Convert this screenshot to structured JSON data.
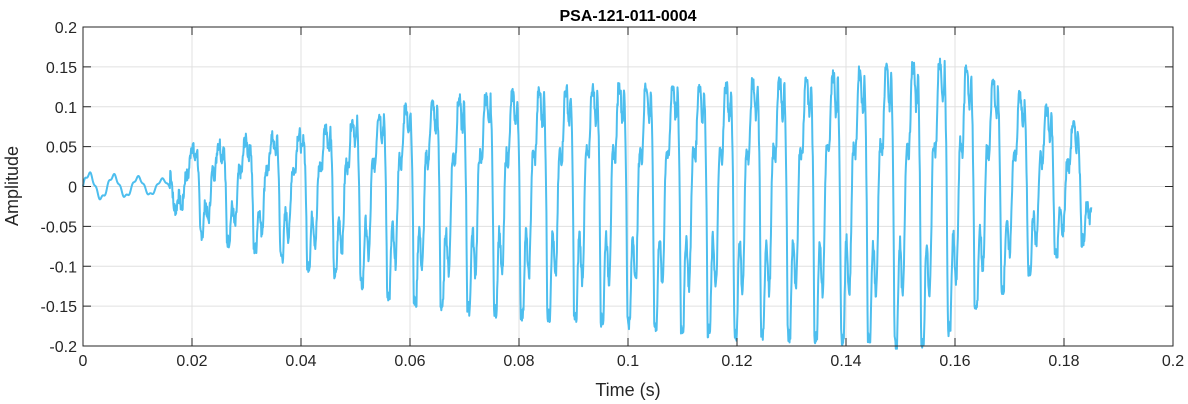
{
  "chart_data": {
    "type": "line",
    "title": "PSA-121-011-0004",
    "xlabel": "Time (s)",
    "ylabel": "Amplitude",
    "xlim": [
      0,
      0.2
    ],
    "ylim": [
      -0.2,
      0.2
    ],
    "grid": true,
    "x_ticks": [
      0,
      0.02,
      0.04,
      0.06,
      0.08,
      0.1,
      0.12,
      0.14,
      0.16,
      0.18,
      0.2
    ],
    "x_tick_labels": [
      "0",
      "0.02",
      "0.04",
      "0.06",
      "0.08",
      "0.1",
      "0.12",
      "0.14",
      "0.16",
      "0.18",
      "0.2"
    ],
    "y_ticks": [
      -0.2,
      -0.15,
      -0.1,
      -0.05,
      0,
      0.05,
      0.1,
      0.15,
      0.2
    ],
    "y_tick_labels": [
      "-0.2",
      "-0.15",
      "-0.1",
      "-0.05",
      "0",
      "0.05",
      "0.1",
      "0.15",
      "0.2"
    ],
    "series": [
      {
        "color": "#4dbeee",
        "x_start": 0,
        "x_end": 0.185,
        "period": 0.0049,
        "onset": 0.016,
        "peak_envelope": [
          [
            0,
            0.018
          ],
          [
            0.016,
            0.02
          ],
          [
            0.02,
            0.05
          ],
          [
            0.04,
            0.065
          ],
          [
            0.06,
            0.1
          ],
          [
            0.08,
            0.115
          ],
          [
            0.1,
            0.125
          ],
          [
            0.12,
            0.125
          ],
          [
            0.14,
            0.14
          ],
          [
            0.16,
            0.155
          ],
          [
            0.17,
            0.12
          ],
          [
            0.18,
            0.085
          ],
          [
            0.185,
            0.06
          ]
        ],
        "trough_envelope": [
          [
            0,
            -0.015
          ],
          [
            0.016,
            -0.02
          ],
          [
            0.02,
            -0.055
          ],
          [
            0.04,
            -0.095
          ],
          [
            0.06,
            -0.145
          ],
          [
            0.08,
            -0.16
          ],
          [
            0.1,
            -0.17
          ],
          [
            0.12,
            -0.185
          ],
          [
            0.14,
            -0.19
          ],
          [
            0.155,
            -0.2
          ],
          [
            0.17,
            -0.12
          ],
          [
            0.18,
            -0.08
          ],
          [
            0.185,
            -0.06
          ]
        ]
      }
    ]
  }
}
